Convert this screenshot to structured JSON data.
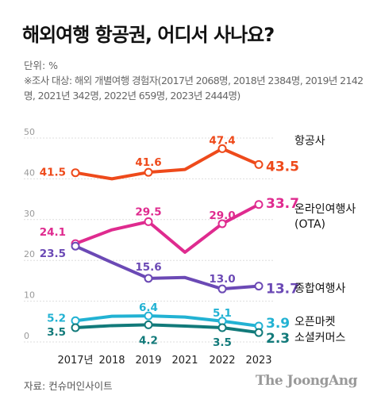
{
  "header": {
    "title": "해외여행 항공권, 어디서 사나요?",
    "unit": "단위: %",
    "note": "※조사 대상: 해외 개별여행 경험자(2017년 2068명, 2018년 2384명, 2019년 2142명, 2021년 342명, 2022년 659명, 2023년 2444명)"
  },
  "footer": {
    "source": "자료: 컨슈머인사이트",
    "brand": "The JoongAng"
  },
  "chart_data": {
    "type": "line",
    "title": "해외여행 항공권, 어디서 사나요?",
    "ylabel": "단위: %",
    "ylim": [
      0,
      50
    ],
    "yticks": [
      0,
      10,
      20,
      30,
      40,
      50
    ],
    "grid": true,
    "categories": [
      "2017년",
      "2018",
      "2019",
      "2021",
      "2022",
      "2023"
    ],
    "series": [
      {
        "name": "항공사",
        "color": "#ee4a1b",
        "values": [
          41.5,
          40.0,
          41.6,
          42.3,
          47.4,
          43.5
        ],
        "labels": [
          "41.5",
          "",
          "41.6",
          "",
          "47.4",
          "43.5"
        ]
      },
      {
        "name": "온라인여행사 (OTA)",
        "color": "#df2b8f",
        "values": [
          24.1,
          27.5,
          29.5,
          22.0,
          29.0,
          33.7
        ],
        "labels": [
          "24.1",
          "",
          "29.5",
          "",
          "29.0",
          "33.7"
        ]
      },
      {
        "name": "종합여행사",
        "color": "#6b49b5",
        "values": [
          23.5,
          19.5,
          15.6,
          15.8,
          13.0,
          13.7
        ],
        "labels": [
          "23.5",
          "",
          "15.6",
          "",
          "13.0",
          "13.7"
        ]
      },
      {
        "name": "오픈마켓",
        "color": "#22b2d3",
        "values": [
          5.2,
          6.3,
          6.4,
          6.1,
          5.1,
          3.9
        ],
        "labels": [
          "5.2",
          "",
          "6.4",
          "",
          "5.1",
          "3.9"
        ]
      },
      {
        "name": "소셜커머스",
        "color": "#127a7a",
        "values": [
          3.5,
          4.0,
          4.2,
          3.9,
          3.5,
          2.3
        ],
        "labels": [
          "3.5",
          "",
          "4.2",
          "",
          "3.5",
          "2.3"
        ]
      }
    ]
  }
}
